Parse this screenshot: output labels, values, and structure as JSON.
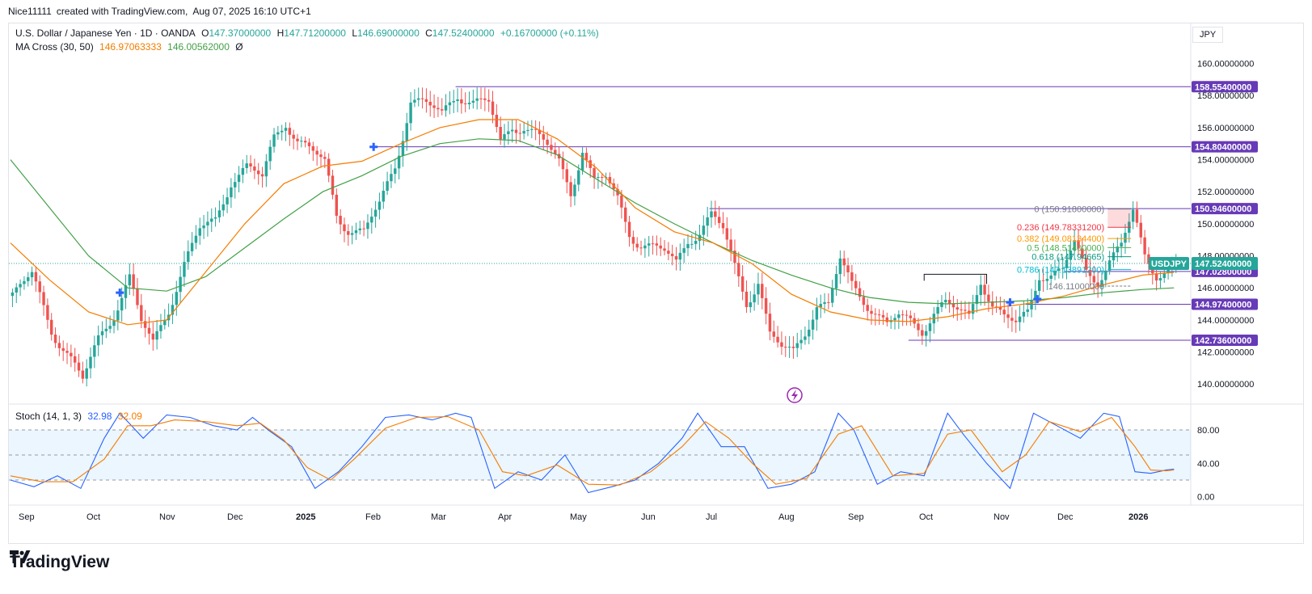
{
  "header": {
    "author": "Nice11111",
    "created_with": "created with TradingView.com,",
    "datetime": "Aug 07, 2025 16:10 UTC+1"
  },
  "legend": {
    "symbol": "U.S. Dollar / Japanese Yen · 1D · OANDA",
    "o_label": "O",
    "o_value": "147.37000000",
    "h_label": "H",
    "h_value": "147.71200000",
    "l_label": "L",
    "l_value": "146.69000000",
    "c_label": "C",
    "c_value": "147.52400000",
    "change": "+0.16700000 (+0.11%)",
    "ma_label": "MA Cross (30, 50)",
    "ma_fast": "146.97063333",
    "ma_slow": "146.00562000",
    "ma_zero": "Ø",
    "stoch_label": "Stoch (14, 1, 3)",
    "stoch_k": "32.98",
    "stoch_d": "32.09"
  },
  "currency": "JPY",
  "footer_brand": "TradingView",
  "colors": {
    "up": "#26a69a",
    "down": "#ef5350",
    "ma_fast": "#f57c00",
    "ma_slow": "#43a047",
    "level": "#673ab7",
    "stoch_k": "#2962ff",
    "stoch_d": "#f57c00",
    "fib_0": "#787b86",
    "fib_236": "#f23645",
    "fib_382": "#ff9800",
    "fib_5": "#4caf50",
    "fib_618": "#089981",
    "fib_786": "#00bcd4",
    "current": "#26a69a"
  },
  "chart_data": {
    "type": "candlestick",
    "x_tick_labels": [
      "Sep",
      "Oct",
      "Nov",
      "Dec",
      "2025",
      "Feb",
      "Mar",
      "Apr",
      "May",
      "Jun",
      "Jul",
      "Aug",
      "Sep",
      "Oct",
      "Nov",
      "Dec",
      "2026"
    ],
    "y_tick_labels": [
      "160.00000000",
      "158.00000000",
      "156.00000000",
      "154.00000000",
      "152.00000000",
      "150.00000000",
      "148.00000000",
      "146.00000000",
      "144.00000000",
      "142.00000000",
      "140.00000000"
    ],
    "y_ticks": [
      160,
      158,
      156,
      154,
      152,
      150,
      148,
      146,
      144,
      142,
      140
    ],
    "ylim": [
      138.8,
      162.5
    ],
    "price_path": [
      [
        0,
        145.5
      ],
      [
        5,
        146.8
      ],
      [
        10,
        143.5
      ],
      [
        15,
        141.5
      ],
      [
        18,
        140.2
      ],
      [
        22,
        142.8
      ],
      [
        26,
        144.5
      ],
      [
        30,
        146.6
      ],
      [
        33,
        143.8
      ],
      [
        36,
        142.5
      ],
      [
        40,
        144.8
      ],
      [
        44,
        147.5
      ],
      [
        48,
        149.6
      ],
      [
        52,
        150.2
      ],
      [
        56,
        152.8
      ],
      [
        60,
        153.5
      ],
      [
        64,
        152.8
      ],
      [
        67,
        155.4
      ],
      [
        70,
        156.5
      ],
      [
        73,
        155.2
      ],
      [
        76,
        154.6
      ],
      [
        80,
        153.8
      ],
      [
        83,
        150.6
      ],
      [
        86,
        149.8
      ],
      [
        90,
        149.4
      ],
      [
        94,
        151.2
      ],
      [
        98,
        153.6
      ],
      [
        102,
        157.8
      ],
      [
        106,
        157.4
      ],
      [
        110,
        156.8
      ],
      [
        114,
        158.2
      ],
      [
        118,
        157.6
      ],
      [
        122,
        157.5
      ],
      [
        125,
        155.0
      ],
      [
        128,
        156.1
      ],
      [
        131,
        156.2
      ],
      [
        134,
        155.6
      ],
      [
        137,
        154.8
      ],
      [
        140,
        153.8
      ],
      [
        143,
        152.0
      ],
      [
        146,
        154.8
      ],
      [
        149,
        152.6
      ],
      [
        152,
        152.8
      ],
      [
        155,
        151.5
      ],
      [
        158,
        149.5
      ],
      [
        161,
        148.8
      ],
      [
        164,
        148.5
      ],
      [
        167,
        148.2
      ],
      [
        170,
        147.5
      ],
      [
        173,
        149.1
      ],
      [
        176,
        149.6
      ],
      [
        179,
        150.5
      ],
      [
        182,
        149.6
      ],
      [
        185,
        147.3
      ],
      [
        188,
        145.2
      ],
      [
        191,
        146.5
      ],
      [
        194,
        143.0
      ],
      [
        197,
        142.2
      ],
      [
        200,
        142.0
      ],
      [
        203,
        143.4
      ],
      [
        206,
        145.0
      ],
      [
        209,
        144.8
      ],
      [
        212,
        147.7
      ],
      [
        215,
        146.2
      ],
      [
        218,
        145.4
      ],
      [
        221,
        144.5
      ],
      [
        224,
        143.6
      ],
      [
        227,
        144.2
      ],
      [
        230,
        143.9
      ],
      [
        233,
        143.5
      ],
      [
        236,
        144.5
      ],
      [
        239,
        145.0
      ],
      [
        242,
        144.5
      ],
      [
        245,
        144.2
      ],
      [
        248,
        146.7
      ],
      [
        251,
        144.9
      ],
      [
        254,
        144.1
      ],
      [
        257,
        143.7
      ],
      [
        260,
        144.5
      ],
      [
        263,
        147.0
      ],
      [
        266,
        146.8
      ],
      [
        269,
        147.0
      ],
      [
        272,
        148.8
      ],
      [
        275,
        147.0
      ],
      [
        278,
        146.6
      ],
      [
        281,
        147.7
      ],
      [
        284,
        148.6
      ],
      [
        287,
        150.7
      ],
      [
        290,
        148.0
      ],
      [
        293,
        147.0
      ],
      [
        296,
        147.2
      ],
      [
        298,
        147.52
      ]
    ],
    "ma_fast_path": [
      [
        0,
        148.8
      ],
      [
        10,
        146.5
      ],
      [
        20,
        144.5
      ],
      [
        30,
        143.7
      ],
      [
        40,
        144.0
      ],
      [
        50,
        147.0
      ],
      [
        60,
        150.0
      ],
      [
        70,
        152.5
      ],
      [
        80,
        153.6
      ],
      [
        90,
        153.9
      ],
      [
        100,
        155.0
      ],
      [
        110,
        156.0
      ],
      [
        120,
        156.5
      ],
      [
        130,
        156.5
      ],
      [
        140,
        155.3
      ],
      [
        150,
        153.5
      ],
      [
        160,
        151.0
      ],
      [
        170,
        149.5
      ],
      [
        180,
        148.8
      ],
      [
        190,
        147.5
      ],
      [
        200,
        145.6
      ],
      [
        210,
        144.5
      ],
      [
        220,
        144.0
      ],
      [
        230,
        143.9
      ],
      [
        240,
        144.2
      ],
      [
        250,
        144.7
      ],
      [
        260,
        145.0
      ],
      [
        270,
        145.5
      ],
      [
        280,
        146.2
      ],
      [
        290,
        146.8
      ],
      [
        298,
        146.97
      ]
    ],
    "ma_slow_path": [
      [
        0,
        154.0
      ],
      [
        10,
        151.0
      ],
      [
        20,
        148.0
      ],
      [
        30,
        146.0
      ],
      [
        40,
        145.8
      ],
      [
        50,
        146.7
      ],
      [
        60,
        148.5
      ],
      [
        70,
        150.3
      ],
      [
        80,
        152.0
      ],
      [
        90,
        153.0
      ],
      [
        100,
        154.2
      ],
      [
        110,
        155.0
      ],
      [
        120,
        155.3
      ],
      [
        130,
        155.2
      ],
      [
        140,
        154.3
      ],
      [
        150,
        152.8
      ],
      [
        160,
        151.3
      ],
      [
        170,
        150.0
      ],
      [
        180,
        148.8
      ],
      [
        190,
        147.7
      ],
      [
        200,
        146.8
      ],
      [
        210,
        146.0
      ],
      [
        220,
        145.4
      ],
      [
        230,
        145.1
      ],
      [
        240,
        145.0
      ],
      [
        250,
        145.1
      ],
      [
        260,
        145.2
      ],
      [
        270,
        145.4
      ],
      [
        280,
        145.7
      ],
      [
        290,
        145.9
      ],
      [
        298,
        146.0
      ]
    ],
    "ma_cross_points": [
      [
        28,
        145.7
      ],
      [
        93,
        154.8
      ],
      [
        256,
        145.1
      ],
      [
        263,
        145.3
      ]
    ],
    "horizontal_levels": [
      {
        "label": "158.55400000",
        "value": 158.554,
        "start": 114
      },
      {
        "label": "154.80400000",
        "value": 154.804,
        "start": 93
      },
      {
        "label": "150.94600000",
        "value": 150.946,
        "start": 179
      },
      {
        "label": "147.02800000",
        "value": 147.028,
        "start": 270
      },
      {
        "label": "144.97400000",
        "value": 144.974,
        "start": 260
      },
      {
        "label": "142.73600000",
        "value": 142.736,
        "start": 230
      }
    ],
    "current_price": {
      "symbol": "USDJPY",
      "label": "147.52400000",
      "value": 147.524
    },
    "fib_levels": [
      {
        "label": "0 (150.91800000)",
        "value": 150.918,
        "key": "fib_0"
      },
      {
        "label": "0.236 (149.78331200)",
        "value": 149.7833,
        "key": "fib_236"
      },
      {
        "label": "0.382 (149.08134400)",
        "value": 149.0813,
        "key": "fib_382"
      },
      {
        "label": "0.5 (148.51400000)",
        "value": 148.514,
        "key": "fib_5"
      },
      {
        "label": "0.618 (147.94665)",
        "value": 147.9467,
        "key": "fib_618"
      },
      {
        "label": "0.786 (147.13891200)",
        "value": 147.1389,
        "key": "fib_786"
      }
    ],
    "fib_low_label": "146.11000000",
    "fib_low_value": 146.11,
    "range_box": {
      "start": 234,
      "end": 250,
      "value": 146.85
    },
    "stoch": {
      "y_tick_labels": [
        "80.00",
        "40.00",
        "0.00"
      ],
      "y_ticks": [
        80,
        40,
        0
      ],
      "upper_band": 80,
      "lower_band": 20,
      "mid_line": 50,
      "ylim": [
        -10,
        110
      ],
      "k_path": [
        [
          0,
          20
        ],
        [
          6,
          12
        ],
        [
          12,
          25
        ],
        [
          18,
          10
        ],
        [
          24,
          70
        ],
        [
          28,
          100
        ],
        [
          34,
          70
        ],
        [
          40,
          98
        ],
        [
          46,
          95
        ],
        [
          52,
          85
        ],
        [
          58,
          80
        ],
        [
          62,
          95
        ],
        [
          66,
          80
        ],
        [
          72,
          60
        ],
        [
          78,
          10
        ],
        [
          84,
          30
        ],
        [
          90,
          60
        ],
        [
          96,
          95
        ],
        [
          102,
          98
        ],
        [
          108,
          92
        ],
        [
          114,
          100
        ],
        [
          118,
          95
        ],
        [
          124,
          10
        ],
        [
          130,
          30
        ],
        [
          136,
          20
        ],
        [
          142,
          50
        ],
        [
          148,
          5
        ],
        [
          154,
          12
        ],
        [
          160,
          20
        ],
        [
          166,
          40
        ],
        [
          172,
          70
        ],
        [
          176,
          100
        ],
        [
          182,
          60
        ],
        [
          188,
          60
        ],
        [
          194,
          10
        ],
        [
          200,
          15
        ],
        [
          206,
          30
        ],
        [
          212,
          100
        ],
        [
          216,
          80
        ],
        [
          222,
          15
        ],
        [
          228,
          30
        ],
        [
          234,
          25
        ],
        [
          240,
          100
        ],
        [
          244,
          75
        ],
        [
          250,
          40
        ],
        [
          256,
          10
        ],
        [
          262,
          100
        ],
        [
          268,
          85
        ],
        [
          274,
          70
        ],
        [
          280,
          100
        ],
        [
          284,
          96
        ],
        [
          288,
          30
        ],
        [
          292,
          28
        ],
        [
          296,
          32
        ],
        [
          298,
          32.98
        ]
      ],
      "d_path": [
        [
          0,
          25
        ],
        [
          8,
          18
        ],
        [
          16,
          18
        ],
        [
          24,
          45
        ],
        [
          30,
          85
        ],
        [
          36,
          85
        ],
        [
          42,
          92
        ],
        [
          50,
          90
        ],
        [
          58,
          85
        ],
        [
          64,
          88
        ],
        [
          70,
          68
        ],
        [
          76,
          35
        ],
        [
          82,
          20
        ],
        [
          88,
          45
        ],
        [
          96,
          82
        ],
        [
          104,
          95
        ],
        [
          112,
          96
        ],
        [
          120,
          80
        ],
        [
          126,
          30
        ],
        [
          132,
          25
        ],
        [
          140,
          38
        ],
        [
          148,
          15
        ],
        [
          156,
          14
        ],
        [
          164,
          30
        ],
        [
          172,
          60
        ],
        [
          178,
          90
        ],
        [
          184,
          70
        ],
        [
          190,
          40
        ],
        [
          196,
          15
        ],
        [
          204,
          22
        ],
        [
          212,
          75
        ],
        [
          218,
          85
        ],
        [
          226,
          25
        ],
        [
          234,
          28
        ],
        [
          240,
          75
        ],
        [
          246,
          80
        ],
        [
          254,
          30
        ],
        [
          260,
          50
        ],
        [
          266,
          90
        ],
        [
          274,
          78
        ],
        [
          282,
          95
        ],
        [
          288,
          60
        ],
        [
          292,
          32
        ],
        [
          296,
          31
        ],
        [
          298,
          32.09
        ]
      ]
    }
  }
}
